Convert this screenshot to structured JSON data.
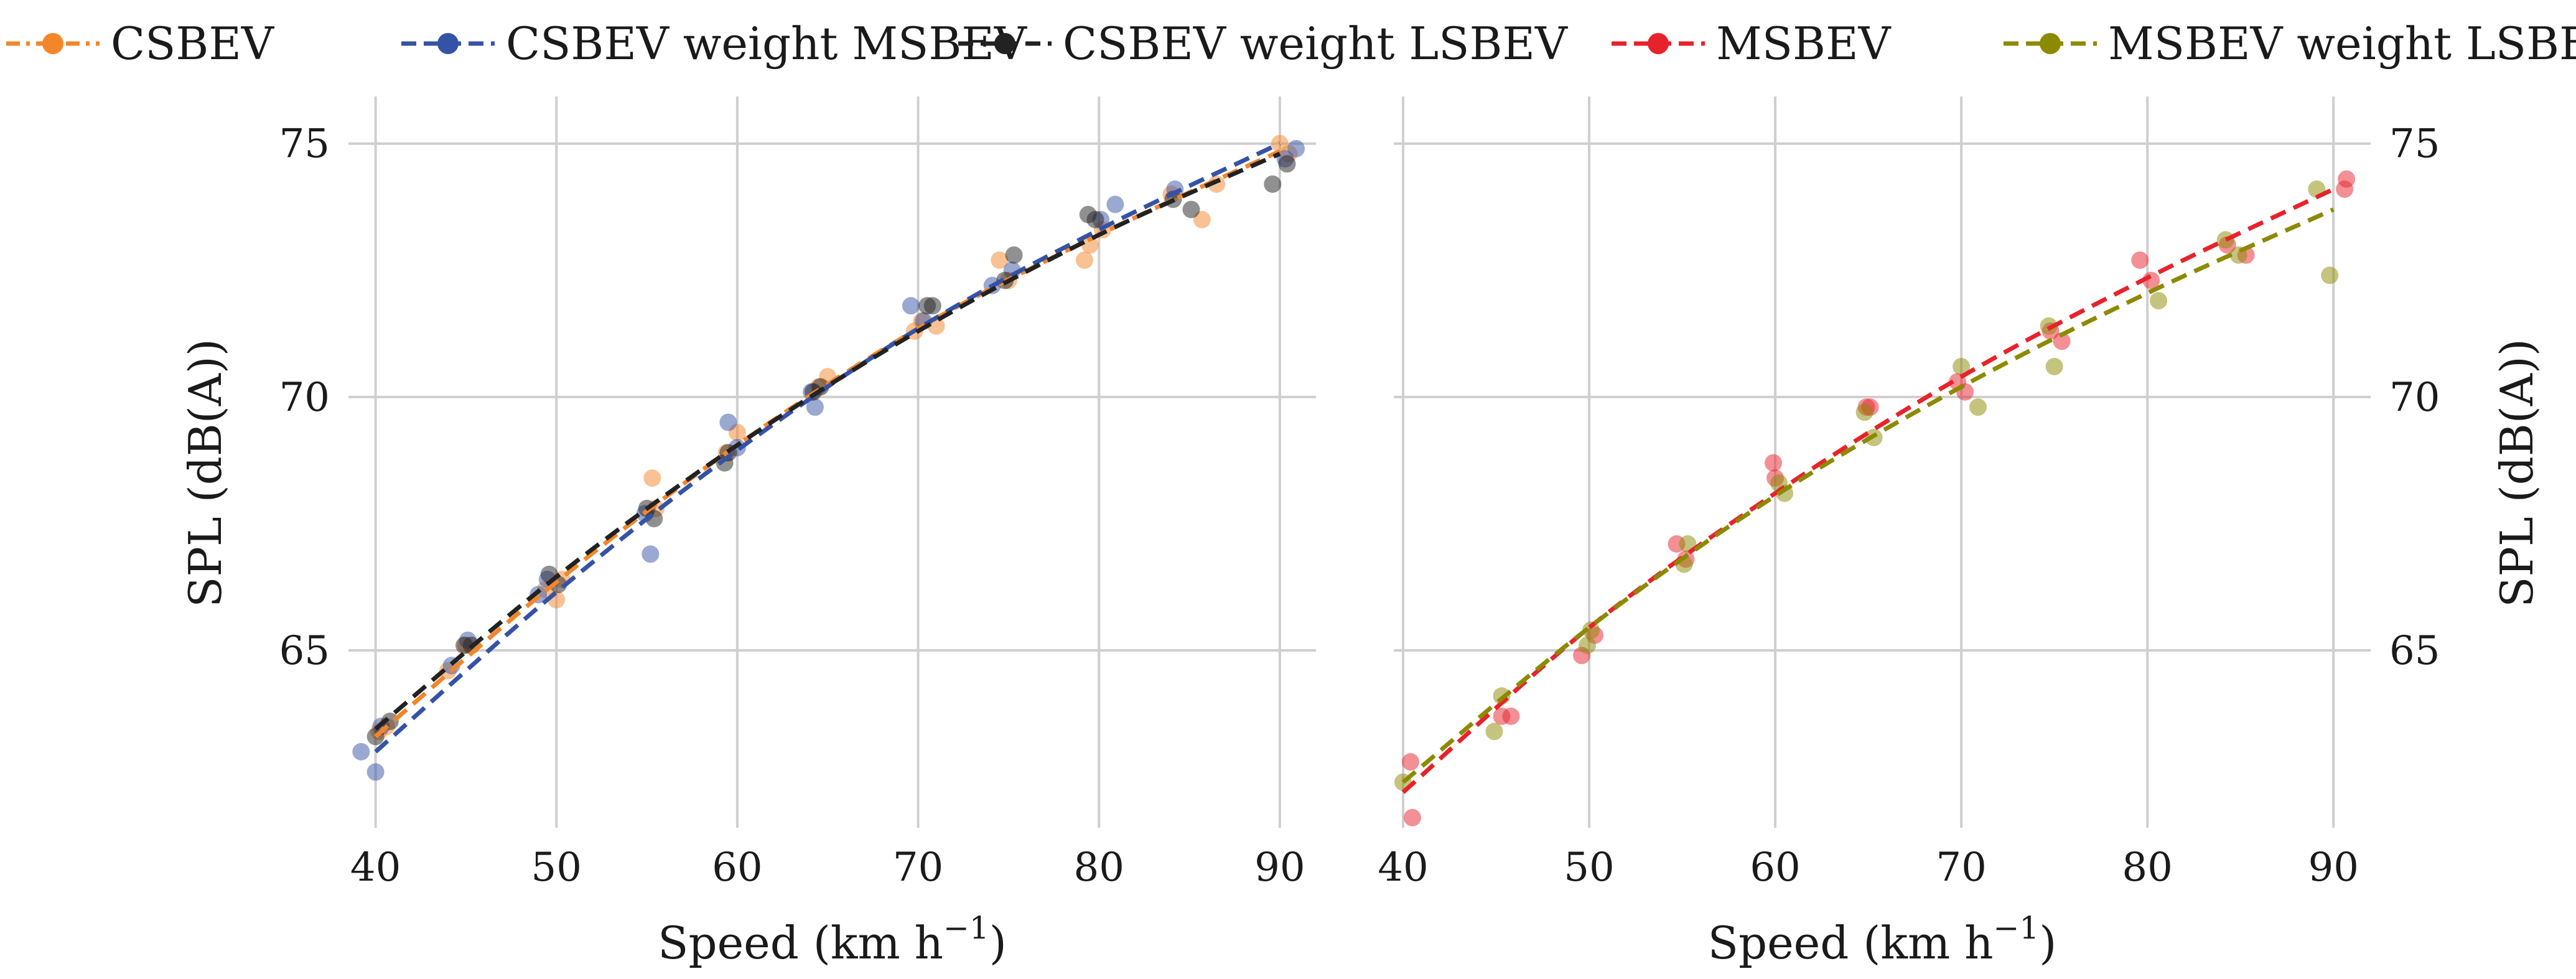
{
  "chart_data": [
    {
      "type": "scatter",
      "panel": "left",
      "xlabel_base": "Speed (km h",
      "xlabel_exp": "−1",
      "xlabel_close": ")",
      "ylabel": "SPL (dB(A))",
      "ylabel_side": "left",
      "xlim": [
        38.5,
        92
      ],
      "ylim": [
        61.5,
        75.5
      ],
      "xticks": [
        40,
        50,
        60,
        70,
        80,
        90
      ],
      "yticks": [
        65,
        70,
        75
      ],
      "series": [
        {
          "name": "CSBEV",
          "color": "#f4862a",
          "points": [
            [
              40.2,
              63.4
            ],
            [
              40.6,
              63.5
            ],
            [
              44,
              64.6
            ],
            [
              45,
              65.1
            ],
            [
              49.4,
              66.2
            ],
            [
              50,
              66
            ],
            [
              50.3,
              66.4
            ],
            [
              55.3,
              68.4
            ],
            [
              55.5,
              67.8
            ],
            [
              59.4,
              68.9
            ],
            [
              60,
              69.3
            ],
            [
              64.5,
              70.2
            ],
            [
              65,
              70.4
            ],
            [
              69.8,
              71.3
            ],
            [
              70.2,
              71.5
            ],
            [
              71,
              71.4
            ],
            [
              74.5,
              72.7
            ],
            [
              75,
              72.3
            ],
            [
              79.2,
              72.7
            ],
            [
              79.5,
              73
            ],
            [
              80.2,
              73.3
            ],
            [
              84,
              74
            ],
            [
              85.7,
              73.5
            ],
            [
              86.5,
              74.2
            ],
            [
              90,
              75
            ],
            [
              90.5,
              74.8
            ]
          ],
          "fit": [
            [
              40,
              63.3
            ],
            [
              50,
              66.35
            ],
            [
              60,
              69.05
            ],
            [
              70,
              71.35
            ],
            [
              80,
              73.2
            ],
            [
              90,
              74.85
            ]
          ]
        },
        {
          "name": "CSBEV weight MSBEV",
          "color": "#3553a6",
          "points": [
            [
              39.2,
              63
            ],
            [
              40,
              62.6
            ],
            [
              40.3,
              63.5
            ],
            [
              44.2,
              64.7
            ],
            [
              45.1,
              65.2
            ],
            [
              49,
              66.1
            ],
            [
              49.5,
              66.4
            ],
            [
              54.9,
              67.7
            ],
            [
              55.2,
              66.9
            ],
            [
              59.5,
              69.5
            ],
            [
              60,
              69
            ],
            [
              64.1,
              70.1
            ],
            [
              64.3,
              69.8
            ],
            [
              69.6,
              71.8
            ],
            [
              70.3,
              71.5
            ],
            [
              74.1,
              72.2
            ],
            [
              75.2,
              72.5
            ],
            [
              80.1,
              73.5
            ],
            [
              80.9,
              73.8
            ],
            [
              84.2,
              74.1
            ],
            [
              90.3,
              74.7
            ],
            [
              90.9,
              74.9
            ]
          ],
          "fit": [
            [
              40,
              63
            ],
            [
              50,
              66.15
            ],
            [
              60,
              68.95
            ],
            [
              70,
              71.35
            ],
            [
              80,
              73.3
            ],
            [
              90,
              75
            ]
          ]
        },
        {
          "name": "CSBEV weight LSBEV",
          "color": "#222222",
          "points": [
            [
              40,
              63.3
            ],
            [
              40.8,
              63.6
            ],
            [
              44.9,
              65.1
            ],
            [
              45.3,
              65.1
            ],
            [
              49.6,
              66.5
            ],
            [
              50.1,
              66.3
            ],
            [
              55,
              67.8
            ],
            [
              55.4,
              67.6
            ],
            [
              59.3,
              68.7
            ],
            [
              59.5,
              68.9
            ],
            [
              64.2,
              70.1
            ],
            [
              64.6,
              70.2
            ],
            [
              70.5,
              71.8
            ],
            [
              70.8,
              71.8
            ],
            [
              74.8,
              72.3
            ],
            [
              75.3,
              72.8
            ],
            [
              79.4,
              73.6
            ],
            [
              79.8,
              73.5
            ],
            [
              84.1,
              73.9
            ],
            [
              85.1,
              73.7
            ],
            [
              89.6,
              74.2
            ],
            [
              90.4,
              74.6
            ]
          ],
          "fit": [
            [
              40,
              63.45
            ],
            [
              50,
              66.45
            ],
            [
              60,
              69.05
            ],
            [
              70,
              71.3
            ],
            [
              80,
              73.2
            ],
            [
              90,
              74.8
            ]
          ]
        }
      ]
    },
    {
      "type": "scatter",
      "panel": "right",
      "xlabel_base": "Speed (km h",
      "xlabel_exp": "−1",
      "xlabel_close": ")",
      "ylabel": "SPL (dB(A))",
      "ylabel_side": "right",
      "xlim": [
        39.5,
        92
      ],
      "ylim": [
        61.5,
        75.5
      ],
      "xticks": [
        40,
        50,
        60,
        70,
        80,
        90
      ],
      "yticks": [
        65,
        70,
        75
      ],
      "series": [
        {
          "name": "MSBEV",
          "color": "#e8222b",
          "points": [
            [
              40.4,
              62.8
            ],
            [
              40.5,
              61.7
            ],
            [
              45.3,
              63.7
            ],
            [
              45.8,
              63.7
            ],
            [
              49.6,
              64.9
            ],
            [
              50.3,
              65.3
            ],
            [
              54.7,
              67.1
            ],
            [
              55.2,
              66.8
            ],
            [
              59.9,
              68.7
            ],
            [
              60,
              68.4
            ],
            [
              64.9,
              69.8
            ],
            [
              65.1,
              69.8
            ],
            [
              69.8,
              70.3
            ],
            [
              70.2,
              70.1
            ],
            [
              74.8,
              71.3
            ],
            [
              75.4,
              71.1
            ],
            [
              79.6,
              72.7
            ],
            [
              80.2,
              72.3
            ],
            [
              84.3,
              73
            ],
            [
              85.3,
              72.8
            ],
            [
              90.6,
              74.1
            ],
            [
              90.7,
              74.3
            ]
          ],
          "fit": [
            [
              40,
              62.2
            ],
            [
              50,
              65.45
            ],
            [
              60,
              68.1
            ],
            [
              70,
              70.4
            ],
            [
              80,
              72.35
            ],
            [
              90,
              74.1
            ]
          ]
        },
        {
          "name": "MSBEV weight LSBEV",
          "color": "#8c8a00",
          "points": [
            [
              40,
              62.4
            ],
            [
              44.9,
              63.4
            ],
            [
              45.3,
              64.1
            ],
            [
              49.9,
              65.1
            ],
            [
              50.1,
              65.4
            ],
            [
              55.1,
              66.7
            ],
            [
              55.3,
              67.1
            ],
            [
              60.2,
              68.3
            ],
            [
              60.5,
              68.1
            ],
            [
              64.8,
              69.7
            ],
            [
              65.3,
              69.2
            ],
            [
              70,
              70.6
            ],
            [
              70.9,
              69.8
            ],
            [
              74.7,
              71.4
            ],
            [
              75,
              70.6
            ],
            [
              80.6,
              71.9
            ],
            [
              84.2,
              73.1
            ],
            [
              84.9,
              72.8
            ],
            [
              89.1,
              74.1
            ],
            [
              89.8,
              72.4
            ]
          ],
          "fit": [
            [
              40,
              62.4
            ],
            [
              50,
              65.45
            ],
            [
              60,
              68.05
            ],
            [
              70,
              70.2
            ],
            [
              80,
              72.05
            ],
            [
              90,
              73.7
            ]
          ]
        }
      ]
    }
  ]
}
